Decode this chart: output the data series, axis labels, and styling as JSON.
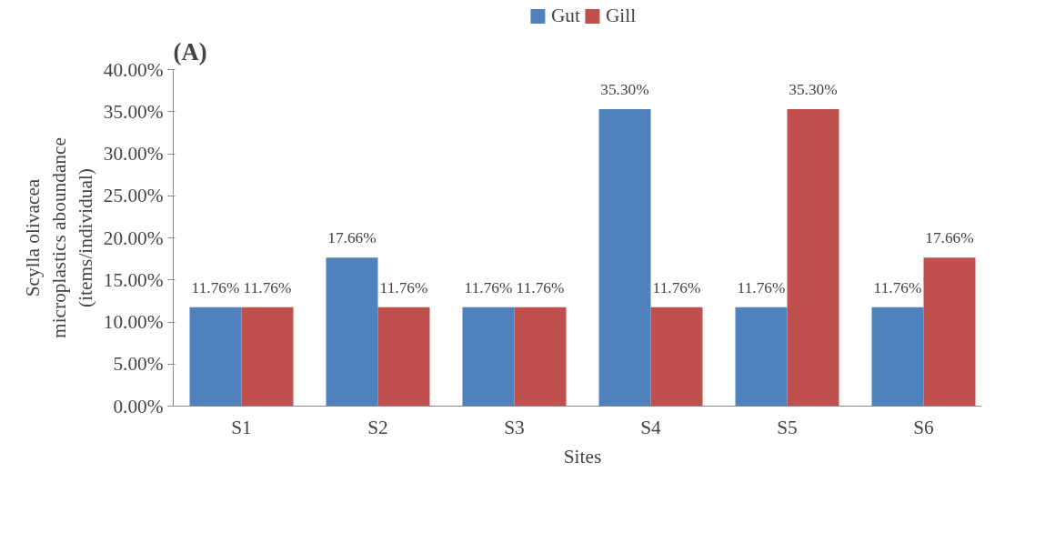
{
  "chart_data": {
    "type": "bar",
    "title": "(A)",
    "xlabel": "Sites",
    "ylabel": "Scylla olivacea\nmicroplastics aboundance\n(items/individual)",
    "categories": [
      "S1",
      "S2",
      "S3",
      "S4",
      "S5",
      "S6"
    ],
    "series": [
      {
        "name": "Gut",
        "color": "#4f81bd",
        "values": [
          11.76,
          17.66,
          11.76,
          35.3,
          11.76,
          11.76
        ],
        "value_labels": [
          "11.76%",
          "17.66%",
          "11.76%",
          "35.30%",
          "11.76%",
          "11.76%"
        ]
      },
      {
        "name": "Gill",
        "color": "#c0504d",
        "values": [
          11.76,
          11.76,
          11.76,
          11.76,
          35.3,
          17.66
        ],
        "value_labels": [
          "11.76%",
          "11.76%",
          "11.76%",
          "11.76%",
          "35.30%",
          "17.66%"
        ]
      }
    ],
    "ylim": [
      0,
      40
    ],
    "yticks": [
      {
        "value": 0,
        "label": "0.00%"
      },
      {
        "value": 5,
        "label": "5.00%"
      },
      {
        "value": 10,
        "label": "10.00%"
      },
      {
        "value": 15,
        "label": "15.00%"
      },
      {
        "value": 20,
        "label": "20.00%"
      },
      {
        "value": 25,
        "label": "25.00%"
      },
      {
        "value": 30,
        "label": "30.00%"
      },
      {
        "value": 35,
        "label": "35.00%"
      },
      {
        "value": 40,
        "label": "40.00%"
      }
    ],
    "grid": false,
    "legend": "top"
  }
}
